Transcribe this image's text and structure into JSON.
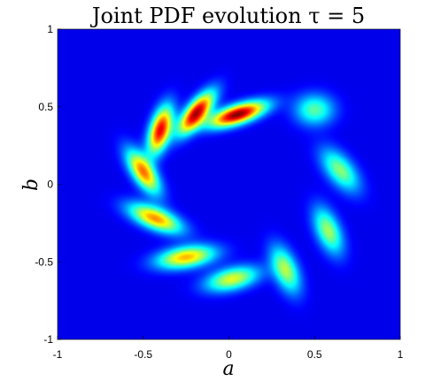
{
  "chart_data": {
    "type": "heatmap",
    "title": "Joint PDF evolution τ = 5",
    "xlabel": "a",
    "ylabel": "b",
    "xlim": [
      -1,
      1
    ],
    "ylim": [
      -1,
      1
    ],
    "xticks": [
      -1,
      -0.5,
      0,
      0.5,
      1
    ],
    "yticks": [
      -1,
      -0.5,
      0,
      0.5,
      1
    ],
    "xtick_labels": [
      "-1",
      "-0.5",
      "0",
      "0.5",
      "1"
    ],
    "ytick_labels": [
      "-1",
      "-0.5",
      "0",
      "0.5",
      "1"
    ],
    "colormap": "jet",
    "background_color": "#00009a",
    "blobs": [
      {
        "x": 0.5,
        "y": 0.48,
        "peak": 0.4,
        "sx": 0.08,
        "sy": 0.07,
        "angle_deg": 0
      },
      {
        "x": 0.65,
        "y": 0.09,
        "peak": 0.45,
        "sx": 0.11,
        "sy": 0.055,
        "angle_deg": -55
      },
      {
        "x": 0.58,
        "y": -0.3,
        "peak": 0.48,
        "sx": 0.11,
        "sy": 0.05,
        "angle_deg": -70
      },
      {
        "x": 0.33,
        "y": -0.55,
        "peak": 0.5,
        "sx": 0.11,
        "sy": 0.05,
        "angle_deg": -70
      },
      {
        "x": 0.02,
        "y": -0.61,
        "peak": 0.55,
        "sx": 0.11,
        "sy": 0.05,
        "angle_deg": 15
      },
      {
        "x": -0.25,
        "y": -0.47,
        "peak": 0.66,
        "sx": 0.12,
        "sy": 0.048,
        "angle_deg": 10
      },
      {
        "x": -0.43,
        "y": -0.22,
        "peak": 0.7,
        "sx": 0.115,
        "sy": 0.048,
        "angle_deg": -25
      },
      {
        "x": -0.5,
        "y": 0.08,
        "peak": 0.72,
        "sx": 0.11,
        "sy": 0.045,
        "angle_deg": -60
      },
      {
        "x": -0.4,
        "y": 0.35,
        "peak": 0.88,
        "sx": 0.11,
        "sy": 0.042,
        "angle_deg": 75
      },
      {
        "x": -0.19,
        "y": 0.46,
        "peak": 0.95,
        "sx": 0.11,
        "sy": 0.042,
        "angle_deg": 55
      },
      {
        "x": 0.05,
        "y": 0.45,
        "peak": 1.0,
        "sx": 0.12,
        "sy": 0.042,
        "angle_deg": 20
      }
    ]
  }
}
